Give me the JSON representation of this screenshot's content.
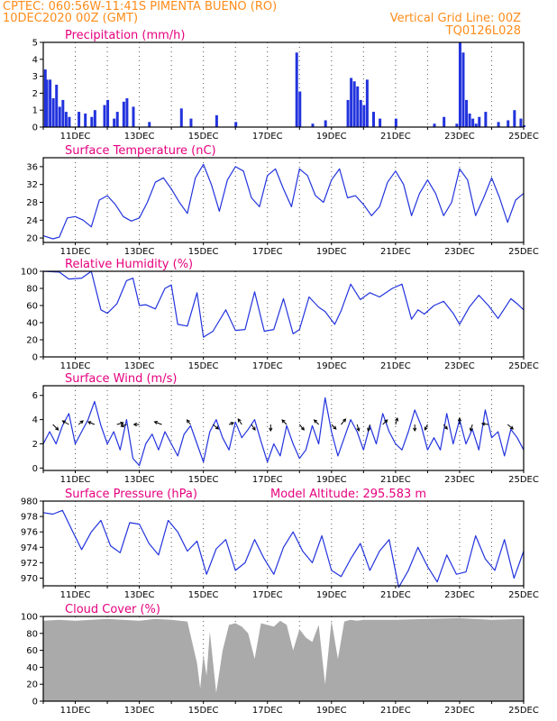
{
  "header": {
    "line1": "CPTEC:   060:56W-11:41S   PIMENTA BUENO (RO)",
    "line2": "10DEC2020 00Z (GMT)",
    "grid_note": "Vertical Grid Line: 00Z",
    "run_id": "TQ0126L028"
  },
  "colors": {
    "series": "#2233dd",
    "cloud": "#aaaaaa",
    "title": "#e6007e",
    "header": "#ff8c1a"
  },
  "chart_data": [
    {
      "id": "precip",
      "type": "bar",
      "title": "Precipitation (mm/h)",
      "ylim": [
        0,
        5
      ],
      "yticks": [
        "0",
        "1",
        "2",
        "3",
        "4",
        "5"
      ],
      "ytick_values": [
        0,
        1,
        2,
        3,
        4,
        5
      ],
      "xlim": [
        0,
        15
      ],
      "xticks": [
        "11DEC",
        "13DEC",
        "15DEC",
        "17DEC",
        "19DEC",
        "21DEC",
        "23DEC",
        "25DEC"
      ],
      "xtick_values": [
        1,
        3,
        5,
        7,
        9,
        11,
        13,
        15
      ],
      "x": [
        0.05,
        0.1,
        0.2,
        0.3,
        0.4,
        0.5,
        0.6,
        0.7,
        0.8,
        1.1,
        1.3,
        1.5,
        1.6,
        1.9,
        2.0,
        2.2,
        2.3,
        2.5,
        2.6,
        2.8,
        3.3,
        4.3,
        4.6,
        5.4,
        6.0,
        7.9,
        8.0,
        8.4,
        8.8,
        9.5,
        9.6,
        9.7,
        9.8,
        9.9,
        10.0,
        10.1,
        10.3,
        10.5,
        11.0,
        12.2,
        12.5,
        12.9,
        13.0,
        13.1,
        13.2,
        13.3,
        13.4,
        13.5,
        13.6,
        13.8,
        14.2,
        14.5,
        14.7,
        14.9,
        15.0
      ],
      "values": [
        3.4,
        2.8,
        2.8,
        1.7,
        2.5,
        1.2,
        1.6,
        0.9,
        0.6,
        0.9,
        0.8,
        0.6,
        1.0,
        1.3,
        1.6,
        0.5,
        0.9,
        1.5,
        1.7,
        1.2,
        0.3,
        1.1,
        0.5,
        0.7,
        0.3,
        4.4,
        2.1,
        0.2,
        0.4,
        1.6,
        2.9,
        2.7,
        2.4,
        1.6,
        1.3,
        2.8,
        0.9,
        0.5,
        0.5,
        0.2,
        0.6,
        0.2,
        5.0,
        4.4,
        1.6,
        0.8,
        0.5,
        0.2,
        0.6,
        0.9,
        0.3,
        0.4,
        1.0,
        0.5,
        0.1
      ]
    },
    {
      "id": "temp",
      "type": "line",
      "title": "Surface Temperature (nC)",
      "ylim": [
        19,
        38
      ],
      "yticks": [
        "20",
        "24",
        "28",
        "32",
        "36"
      ],
      "ytick_values": [
        20,
        24,
        28,
        32,
        36
      ],
      "xlim": [
        0,
        15
      ],
      "xticks": [
        "11DEC",
        "13DEC",
        "15DEC",
        "17DEC",
        "19DEC",
        "21DEC",
        "23DEC",
        "25DEC"
      ],
      "xtick_values": [
        1,
        3,
        5,
        7,
        9,
        11,
        13,
        15
      ],
      "x": [
        0,
        0.3,
        0.5,
        0.75,
        1.0,
        1.25,
        1.5,
        1.75,
        2.0,
        2.25,
        2.5,
        2.75,
        3.0,
        3.25,
        3.5,
        3.75,
        4.0,
        4.25,
        4.5,
        4.75,
        5.0,
        5.25,
        5.5,
        5.75,
        6.0,
        6.25,
        6.5,
        6.75,
        7.0,
        7.25,
        7.5,
        7.75,
        8.0,
        8.25,
        8.5,
        8.75,
        9.0,
        9.25,
        9.5,
        9.75,
        10.0,
        10.25,
        10.5,
        10.75,
        11.0,
        11.25,
        11.5,
        11.75,
        12.0,
        12.25,
        12.5,
        12.75,
        13.0,
        13.25,
        13.5,
        13.75,
        14.0,
        14.25,
        14.5,
        14.75,
        15.0
      ],
      "values": [
        20.5,
        19.8,
        20.2,
        24.5,
        24.8,
        24.0,
        22.5,
        28.5,
        29.5,
        27.5,
        24.8,
        23.8,
        24.5,
        28.0,
        32.5,
        33.5,
        31.0,
        28.0,
        25.5,
        33.5,
        36.5,
        32.0,
        26.0,
        33.0,
        36.0,
        35.0,
        29.0,
        27.0,
        34.0,
        35.5,
        31.0,
        27.0,
        35.5,
        34.0,
        29.5,
        28.0,
        33.0,
        35.5,
        29.0,
        29.5,
        27.5,
        25.0,
        27.0,
        32.5,
        35.0,
        32.0,
        25.0,
        30.0,
        33.0,
        30.0,
        25.0,
        28.0,
        35.5,
        33.0,
        25.0,
        29.0,
        33.5,
        29.0,
        23.5,
        28.5,
        30.0
      ]
    },
    {
      "id": "rh",
      "type": "line",
      "title": "Relative Humidity (%)",
      "ylim": [
        0,
        100
      ],
      "yticks": [
        "0",
        "20",
        "40",
        "60",
        "80",
        "100"
      ],
      "ytick_values": [
        0,
        20,
        40,
        60,
        80,
        100
      ],
      "xlim": [
        0,
        15
      ],
      "xticks": [
        "11DEC",
        "13DEC",
        "15DEC",
        "17DEC",
        "19DEC",
        "21DEC",
        "23DEC",
        "25DEC"
      ],
      "xtick_values": [
        1,
        3,
        5,
        7,
        9,
        11,
        13,
        15
      ],
      "x": [
        0,
        0.5,
        0.8,
        1.2,
        1.5,
        1.8,
        2.0,
        2.3,
        2.6,
        2.8,
        3.0,
        3.2,
        3.5,
        3.8,
        4.0,
        4.2,
        4.5,
        4.8,
        5.0,
        5.3,
        5.7,
        6.0,
        6.3,
        6.6,
        6.9,
        7.2,
        7.5,
        7.8,
        8.0,
        8.3,
        8.6,
        8.8,
        9.1,
        9.3,
        9.6,
        9.9,
        10.2,
        10.5,
        10.9,
        11.2,
        11.5,
        11.7,
        11.9,
        12.2,
        12.5,
        12.8,
        13.0,
        13.3,
        13.6,
        13.9,
        14.2,
        14.6,
        14.8,
        15.0
      ],
      "values": [
        100,
        99,
        91,
        92,
        100,
        55,
        51,
        62,
        89,
        92,
        60,
        61,
        56,
        80,
        84,
        38,
        36,
        75,
        23,
        30,
        55,
        31,
        32,
        76,
        30,
        32,
        68,
        27,
        32,
        70,
        58,
        53,
        38,
        54,
        85,
        67,
        75,
        70,
        80,
        85,
        44,
        55,
        50,
        60,
        65,
        51,
        38,
        58,
        72,
        60,
        45,
        68,
        62,
        55
      ]
    },
    {
      "id": "wind",
      "type": "line",
      "title": "Surface Wind (m/s)",
      "ylim": [
        -0.2,
        6.8
      ],
      "yticks": [
        "0",
        "2",
        "4",
        "6"
      ],
      "ytick_values": [
        0,
        2,
        4,
        6
      ],
      "xlim": [
        0,
        15
      ],
      "xticks": [
        "11DEC",
        "13DEC",
        "15DEC",
        "17DEC",
        "19DEC",
        "21DEC",
        "23DEC",
        "25DEC"
      ],
      "xtick_values": [
        1,
        3,
        5,
        7,
        9,
        11,
        13,
        15
      ],
      "x": [
        0,
        0.2,
        0.4,
        0.6,
        0.8,
        1.0,
        1.2,
        1.4,
        1.6,
        1.8,
        2.0,
        2.2,
        2.4,
        2.6,
        2.8,
        3.0,
        3.2,
        3.4,
        3.6,
        3.8,
        4.0,
        4.2,
        4.4,
        4.6,
        4.8,
        5.0,
        5.2,
        5.4,
        5.6,
        5.8,
        6.0,
        6.2,
        6.4,
        6.6,
        6.8,
        7.0,
        7.2,
        7.4,
        7.6,
        7.8,
        8.0,
        8.2,
        8.4,
        8.6,
        8.8,
        9.0,
        9.2,
        9.4,
        9.6,
        9.8,
        10.0,
        10.2,
        10.4,
        10.6,
        10.8,
        11.0,
        11.2,
        11.4,
        11.6,
        11.8,
        12.0,
        12.2,
        12.4,
        12.6,
        12.8,
        13.0,
        13.2,
        13.4,
        13.6,
        13.8,
        14.0,
        14.2,
        14.4,
        14.6,
        14.8,
        15.0
      ],
      "values": [
        2.0,
        3.0,
        2.0,
        3.5,
        4.5,
        2.0,
        3.0,
        4.0,
        5.5,
        3.5,
        2.0,
        3.0,
        1.5,
        4.0,
        0.8,
        0.2,
        2.0,
        2.8,
        1.5,
        3.0,
        2.0,
        1.0,
        2.8,
        3.5,
        2.0,
        0.5,
        3.0,
        4.0,
        2.5,
        1.5,
        3.8,
        2.5,
        3.2,
        4.0,
        2.2,
        0.5,
        2.0,
        1.0,
        3.5,
        2.0,
        0.8,
        1.5,
        3.5,
        2.0,
        5.8,
        3.0,
        1.0,
        2.5,
        4.0,
        3.0,
        1.5,
        3.5,
        2.0,
        4.5,
        3.0,
        2.0,
        1.5,
        3.0,
        4.8,
        3.5,
        1.5,
        2.5,
        1.5,
        4.5,
        2.0,
        4.0,
        2.0,
        3.2,
        1.5,
        4.8,
        2.5,
        3.0,
        1.0,
        3.2,
        2.5,
        1.5
      ],
      "arrows": [
        {
          "x": 0.3,
          "dx": 6,
          "dy": 6
        },
        {
          "x": 0.8,
          "dx": -7,
          "dy": -4
        },
        {
          "x": 1.1,
          "dx": 5,
          "dy": -4
        },
        {
          "x": 1.6,
          "dx": -7,
          "dy": -3
        },
        {
          "x": 2.3,
          "dx": 7,
          "dy": -2
        },
        {
          "x": 2.6,
          "dx": -6,
          "dy": 2
        },
        {
          "x": 3.0,
          "dx": -6,
          "dy": 0
        },
        {
          "x": 3.7,
          "dx": -8,
          "dy": -3
        },
        {
          "x": 4.6,
          "dx": -4,
          "dy": -5
        },
        {
          "x": 5.3,
          "dx": 6,
          "dy": 5
        },
        {
          "x": 5.8,
          "dx": 5,
          "dy": -2
        },
        {
          "x": 6.2,
          "dx": -4,
          "dy": -6
        },
        {
          "x": 6.5,
          "dx": 4,
          "dy": 6
        },
        {
          "x": 7.1,
          "dx": 0,
          "dy": 7
        },
        {
          "x": 7.6,
          "dx": -5,
          "dy": -5
        },
        {
          "x": 8.0,
          "dx": 5,
          "dy": 6
        },
        {
          "x": 8.6,
          "dx": -5,
          "dy": -5
        },
        {
          "x": 9.0,
          "dx": 5,
          "dy": 5
        },
        {
          "x": 9.3,
          "dx": 5,
          "dy": -6
        },
        {
          "x": 9.8,
          "dx": 2,
          "dy": 7
        },
        {
          "x": 10.2,
          "dx": -2,
          "dy": 7
        },
        {
          "x": 10.6,
          "dx": 5,
          "dy": -5
        },
        {
          "x": 11.0,
          "dx": 2,
          "dy": -7
        },
        {
          "x": 11.6,
          "dx": 0,
          "dy": 7
        },
        {
          "x": 12.0,
          "dx": -3,
          "dy": 6
        },
        {
          "x": 12.5,
          "dx": 4,
          "dy": 5
        },
        {
          "x": 13.0,
          "dx": 0,
          "dy": -7
        },
        {
          "x": 13.4,
          "dx": -2,
          "dy": 7
        },
        {
          "x": 13.9,
          "dx": -7,
          "dy": -1
        },
        {
          "x": 14.5,
          "dx": 6,
          "dy": 5
        }
      ]
    },
    {
      "id": "press",
      "type": "line",
      "title": "Surface Pressure (hPa)",
      "annotation": "Model Altitude: 295.583 m",
      "ylim": [
        969,
        980
      ],
      "yticks": [
        "970",
        "972",
        "974",
        "976",
        "978",
        "980"
      ],
      "ytick_values": [
        970,
        972,
        974,
        976,
        978,
        980
      ],
      "xlim": [
        0,
        15
      ],
      "xticks": [
        "11DEC",
        "13DEC",
        "15DEC",
        "17DEC",
        "19DEC",
        "21DEC",
        "23DEC",
        "25DEC"
      ],
      "xtick_values": [
        1,
        3,
        5,
        7,
        9,
        11,
        13,
        15
      ],
      "x": [
        0,
        0.3,
        0.6,
        0.9,
        1.2,
        1.5,
        1.8,
        2.1,
        2.4,
        2.7,
        3.0,
        3.3,
        3.6,
        3.9,
        4.2,
        4.5,
        4.8,
        5.1,
        5.4,
        5.7,
        6.0,
        6.3,
        6.6,
        6.9,
        7.2,
        7.5,
        7.8,
        8.1,
        8.4,
        8.7,
        9.0,
        9.3,
        9.6,
        9.9,
        10.2,
        10.5,
        10.8,
        11.1,
        11.4,
        11.7,
        12.0,
        12.3,
        12.6,
        12.9,
        13.2,
        13.5,
        13.8,
        14.1,
        14.4,
        14.7,
        15.0
      ],
      "values": [
        978.5,
        978.3,
        978.8,
        976.2,
        973.7,
        976.0,
        977.5,
        974.2,
        973.3,
        977.2,
        977.0,
        974.5,
        973.0,
        977.5,
        976.0,
        973.5,
        974.8,
        970.5,
        973.8,
        975.0,
        971.0,
        972.0,
        975.0,
        972.5,
        970.5,
        974.0,
        976.0,
        973.5,
        972.0,
        975.5,
        971.0,
        970.2,
        972.5,
        974.5,
        971.0,
        973.5,
        975.0,
        968.8,
        971.0,
        974.0,
        971.5,
        969.5,
        973.0,
        970.5,
        970.8,
        975.5,
        972.5,
        971.0,
        975.0,
        970.0,
        973.5
      ]
    },
    {
      "id": "cloud",
      "type": "area",
      "title": "Cloud Cover (%)",
      "ylim": [
        0,
        100
      ],
      "yticks": [
        "0",
        "20",
        "40",
        "60",
        "80",
        "100"
      ],
      "ytick_values": [
        0,
        20,
        40,
        60,
        80,
        100
      ],
      "xlim": [
        0,
        15
      ],
      "xticks": [
        "11DEC",
        "13DEC",
        "15DEC",
        "17DEC",
        "19DEC",
        "21DEC",
        "23DEC",
        "25DEC"
      ],
      "xtick_values": [
        1,
        3,
        5,
        7,
        9,
        11,
        13,
        15
      ],
      "x": [
        0,
        0.5,
        1,
        1.5,
        2,
        2.5,
        3,
        3.5,
        4,
        4.5,
        4.8,
        4.9,
        5.0,
        5.1,
        5.2,
        5.4,
        5.6,
        5.8,
        6.0,
        6.2,
        6.4,
        6.6,
        6.8,
        7.0,
        7.2,
        7.4,
        7.6,
        7.8,
        8.0,
        8.2,
        8.4,
        8.6,
        8.8,
        9.0,
        9.2,
        9.4,
        9.6,
        9.8,
        10,
        11,
        12,
        13,
        14,
        15
      ],
      "values": [
        95,
        96,
        95,
        96,
        97,
        96,
        95,
        97,
        96,
        94,
        45,
        15,
        55,
        30,
        82,
        10,
        60,
        90,
        92,
        88,
        80,
        50,
        92,
        90,
        88,
        95,
        90,
        60,
        85,
        75,
        70,
        90,
        20,
        95,
        50,
        94,
        96,
        95,
        96,
        96,
        97,
        98,
        96,
        97
      ]
    }
  ]
}
